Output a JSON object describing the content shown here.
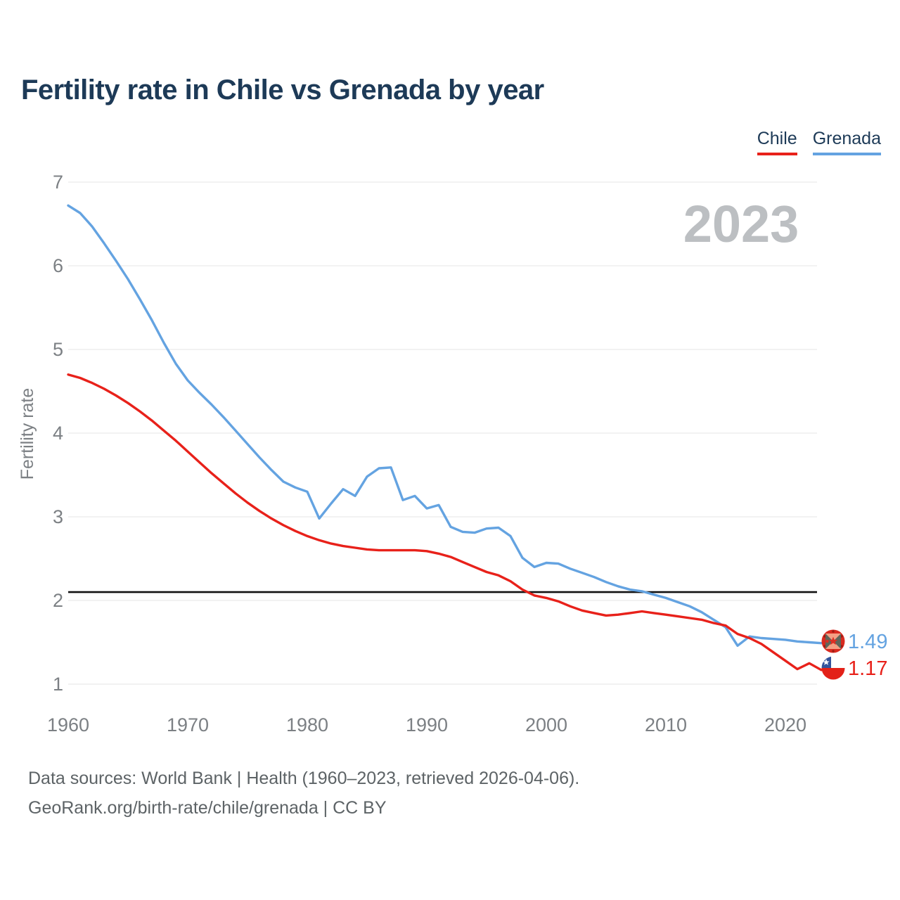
{
  "page": {
    "title": "Fertility rate in Chile vs Grenada by year",
    "watermark": "2023"
  },
  "legend": [
    {
      "label": "Chile",
      "color": "#e8211a"
    },
    {
      "label": "Grenada",
      "color": "#64a3e1"
    }
  ],
  "end_labels": [
    {
      "series": "Grenada",
      "label": "1.49",
      "color": "#64a3e1",
      "flag": "grenada-flag"
    },
    {
      "series": "Chile",
      "label": "1.17",
      "color": "#e8211a",
      "flag": "chile-flag"
    }
  ],
  "footer": {
    "line1": "Data sources: World Bank | Health (1960–2023, retrieved 2026-04-06).",
    "line2": "GeoRank.org/birth-rate/chile/grenada | CC BY"
  },
  "colors": {
    "title": "#1d3a57",
    "axis_text": "#7c8084",
    "grid": "#ededed",
    "watermark": "#bcbfc2",
    "reference_line": "#111111"
  },
  "chart_data": {
    "type": "line",
    "title": "Fertility rate in Chile vs Grenada by year",
    "xlabel": "",
    "ylabel": "Fertility rate",
    "x": [
      1960,
      1961,
      1962,
      1963,
      1964,
      1965,
      1966,
      1967,
      1968,
      1969,
      1970,
      1971,
      1972,
      1973,
      1974,
      1975,
      1976,
      1977,
      1978,
      1979,
      1980,
      1981,
      1982,
      1983,
      1984,
      1985,
      1986,
      1987,
      1988,
      1989,
      1990,
      1991,
      1992,
      1993,
      1994,
      1995,
      1996,
      1997,
      1998,
      1999,
      2000,
      2001,
      2002,
      2003,
      2004,
      2005,
      2006,
      2007,
      2008,
      2009,
      2010,
      2011,
      2012,
      2013,
      2014,
      2015,
      2016,
      2017,
      2018,
      2019,
      2020,
      2021,
      2022,
      2023
    ],
    "series": [
      {
        "name": "Chile",
        "color": "#e8211a",
        "values": [
          4.7,
          4.66,
          4.6,
          4.53,
          4.45,
          4.36,
          4.26,
          4.15,
          4.03,
          3.91,
          3.78,
          3.65,
          3.52,
          3.4,
          3.28,
          3.17,
          3.07,
          2.98,
          2.9,
          2.83,
          2.77,
          2.72,
          2.68,
          2.65,
          2.63,
          2.61,
          2.6,
          2.6,
          2.6,
          2.6,
          2.59,
          2.56,
          2.52,
          2.46,
          2.4,
          2.34,
          2.3,
          2.23,
          2.13,
          2.06,
          2.03,
          1.99,
          1.93,
          1.88,
          1.85,
          1.82,
          1.83,
          1.85,
          1.87,
          1.85,
          1.83,
          1.81,
          1.79,
          1.77,
          1.73,
          1.7,
          1.6,
          1.55,
          1.48,
          1.38,
          1.28,
          1.18,
          1.25,
          1.17
        ]
      },
      {
        "name": "Grenada",
        "color": "#64a3e1",
        "values": [
          6.72,
          6.63,
          6.47,
          6.27,
          6.06,
          5.84,
          5.6,
          5.35,
          5.08,
          4.83,
          4.63,
          4.48,
          4.34,
          4.19,
          4.03,
          3.87,
          3.71,
          3.56,
          3.42,
          3.35,
          3.3,
          2.98,
          3.16,
          3.33,
          3.25,
          3.48,
          3.58,
          3.59,
          3.2,
          3.25,
          3.1,
          3.14,
          2.88,
          2.82,
          2.81,
          2.86,
          2.87,
          2.77,
          2.51,
          2.4,
          2.45,
          2.44,
          2.38,
          2.33,
          2.28,
          2.22,
          2.17,
          2.13,
          2.11,
          2.07,
          2.03,
          1.98,
          1.93,
          1.86,
          1.77,
          1.68,
          1.46,
          1.57,
          1.55,
          1.54,
          1.53,
          1.51,
          1.5,
          1.49
        ]
      }
    ],
    "yticks": [
      1,
      2,
      3,
      4,
      5,
      6,
      7
    ],
    "xticks": [
      1960,
      1970,
      1980,
      1990,
      2000,
      2010,
      2020
    ],
    "ylim": [
      0.8,
      7.2
    ],
    "xlim": [
      1960,
      2023
    ],
    "grid": "horizontal",
    "legend_position": "top-right",
    "reference_line": {
      "value": 2.1
    },
    "end_value_labels": {
      "Grenada": 1.49,
      "Chile": 1.17
    }
  }
}
